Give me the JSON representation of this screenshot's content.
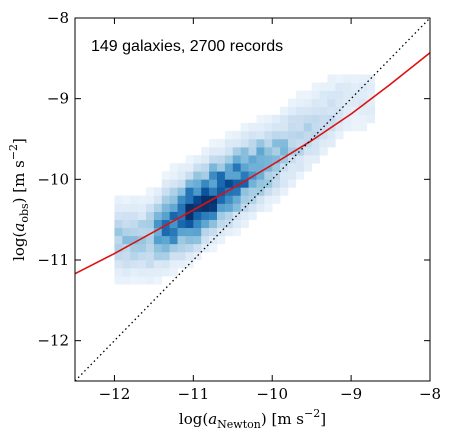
{
  "chart_data": {
    "type": "heatmap",
    "title": "",
    "annotation": "149 galaxies, 2700 records",
    "xlabel": {
      "prefix": "log(",
      "var": "a",
      "sub": "Newton",
      "mid": ") [m s",
      "sup": "−2",
      "end": "]"
    },
    "ylabel": {
      "prefix": "log(",
      "var": "a",
      "sub": "obs",
      "mid": ") [m s",
      "sup": "−2",
      "end": "]"
    },
    "xlim": [
      -12.5,
      -8
    ],
    "ylim": [
      -12.5,
      -8
    ],
    "xticks": [
      -12,
      -11,
      -10,
      -9,
      -8
    ],
    "yticks": [
      -12,
      -11,
      -10,
      -9,
      -8
    ],
    "xtick_labels": [
      "−12",
      "−11",
      "−10",
      "−9",
      "−8"
    ],
    "ytick_labels": [
      "−12",
      "−11",
      "−10",
      "−9",
      "−8"
    ],
    "grid": false,
    "colormap": "Blues",
    "density_ridge": [
      {
        "x": -11.6,
        "y": -10.75,
        "w": 0.35
      },
      {
        "x": -11.4,
        "y": -10.62,
        "w": 0.6
      },
      {
        "x": -11.2,
        "y": -10.48,
        "w": 0.8
      },
      {
        "x": -11.0,
        "y": -10.38,
        "w": 0.95
      },
      {
        "x": -10.8,
        "y": -10.25,
        "w": 0.9
      },
      {
        "x": -10.6,
        "y": -10.12,
        "w": 0.8
      },
      {
        "x": -10.4,
        "y": -10.0,
        "w": 0.7
      },
      {
        "x": -10.2,
        "y": -9.88,
        "w": 0.6
      },
      {
        "x": -10.0,
        "y": -9.75,
        "w": 0.45
      },
      {
        "x": -9.8,
        "y": -9.6,
        "w": 0.35
      },
      {
        "x": -9.6,
        "y": -9.45,
        "w": 0.3
      },
      {
        "x": -9.4,
        "y": -9.3,
        "w": 0.25
      },
      {
        "x": -9.2,
        "y": -9.15,
        "w": 0.2
      },
      {
        "x": -9.0,
        "y": -9.0,
        "w": 0.12
      }
    ],
    "series": [
      {
        "name": "",
        "style": "solid",
        "color": "#dd1111",
        "x": [
          -12.5,
          -12.0,
          -11.5,
          -11.0,
          -10.5,
          -10.0,
          -9.5,
          -9.0,
          -8.5,
          -8.0
        ],
        "y": [
          -11.17,
          -10.92,
          -10.65,
          -10.38,
          -10.11,
          -9.82,
          -9.52,
          -9.19,
          -8.82,
          -8.43
        ]
      },
      {
        "name": "",
        "style": "dotted",
        "color": "#000000",
        "x": [
          -12.5,
          -8.0
        ],
        "y": [
          -12.5,
          -8.0
        ]
      }
    ]
  }
}
